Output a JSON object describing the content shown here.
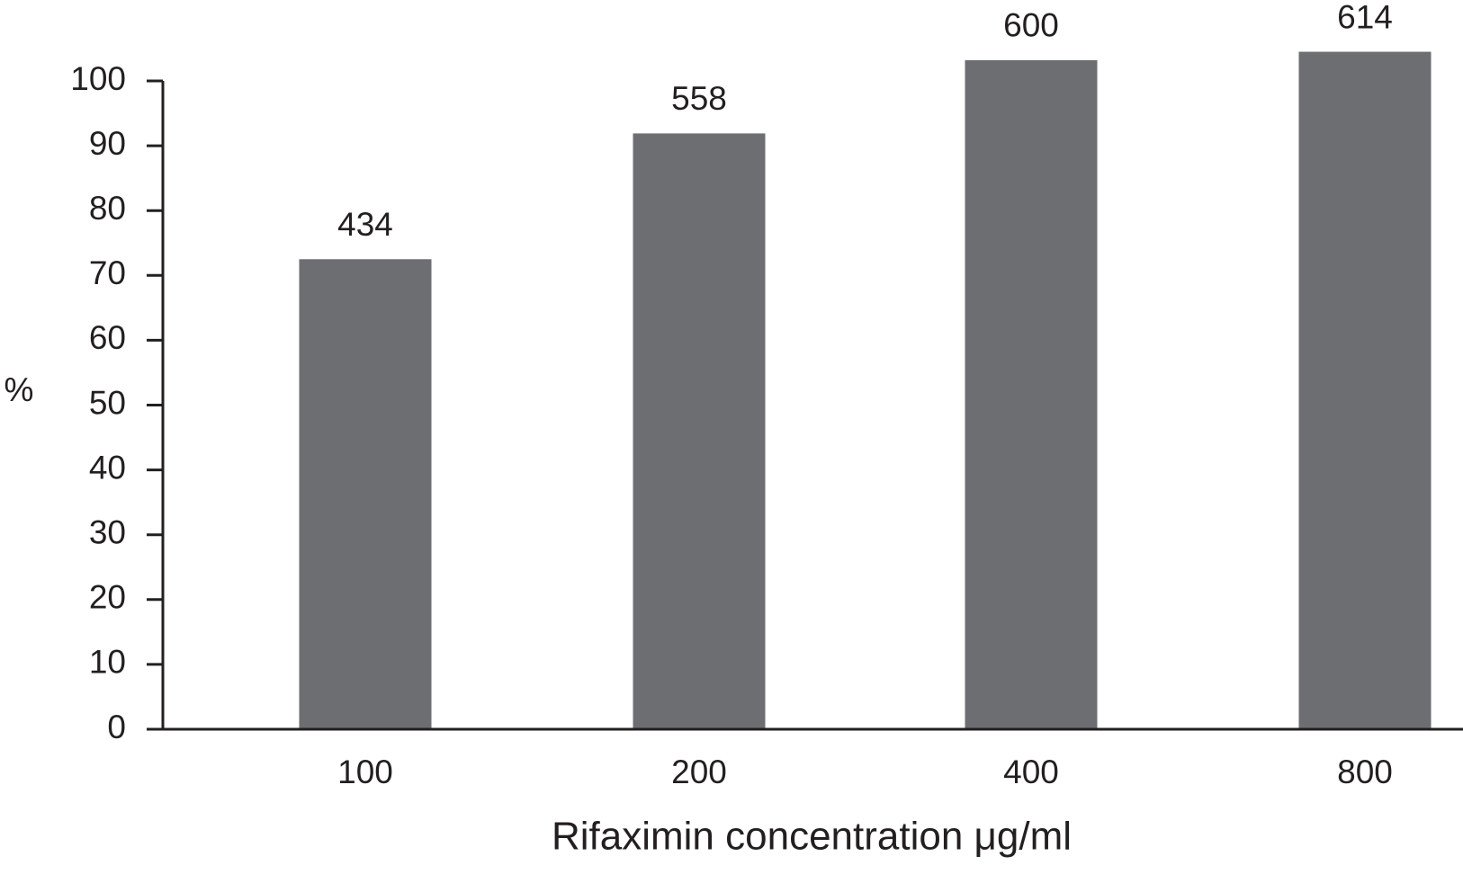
{
  "chart_data": {
    "type": "bar",
    "x_label": "Rifaximin concentration μg/ml",
    "y_label": "%",
    "categories": [
      "100",
      "200",
      "400",
      "800"
    ],
    "values": [
      72.5,
      91.9,
      103.2,
      104.5
    ],
    "counts": [
      434,
      558,
      600,
      614
    ],
    "color": "#6d6e71",
    "ylim": [
      0,
      100
    ],
    "yticks": [
      0,
      10,
      20,
      30,
      40,
      50,
      60,
      70,
      80,
      90,
      100
    ]
  }
}
